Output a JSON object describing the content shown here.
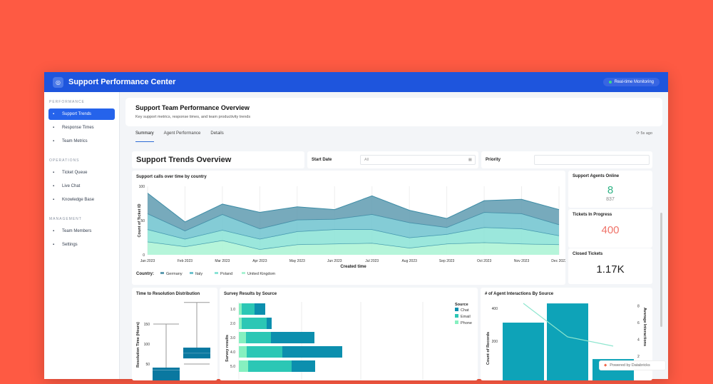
{
  "header": {
    "title": "Support Performance Center",
    "monitoring": "Real-time Monitoring"
  },
  "sidebar": {
    "sections": [
      {
        "label": "PERFORMANCE",
        "items": [
          {
            "label": "Support Trends",
            "icon": "bar-chart-icon",
            "active": true
          },
          {
            "label": "Response Times",
            "icon": "clock-icon"
          },
          {
            "label": "Team Metrics",
            "icon": "chart-icon"
          }
        ]
      },
      {
        "label": "OPERATIONS",
        "items": [
          {
            "label": "Ticket Queue",
            "icon": "ticket-icon"
          },
          {
            "label": "Live Chat",
            "icon": "chat-icon"
          },
          {
            "label": "Knowledge Base",
            "icon": "book-icon"
          }
        ]
      },
      {
        "label": "MANAGEMENT",
        "items": [
          {
            "label": "Team Members",
            "icon": "people-icon"
          },
          {
            "label": "Settings",
            "icon": "gear-icon"
          }
        ]
      }
    ]
  },
  "overview": {
    "title": "Support Team Performance Overview",
    "subtitle": "Key support metrics, response times, and team productivity trends"
  },
  "tabs": [
    "Summary",
    "Agent Performance",
    "Details"
  ],
  "refresh": "5s ago",
  "dashboard": {
    "title": "Support Trends Overview",
    "start_date_label": "Start Date",
    "start_date_value": "All",
    "priority_label": "Priority",
    "priority_value": ""
  },
  "kpis": [
    {
      "label": "Support Agents Online",
      "value": "8",
      "sub": "837",
      "color": "#2fb385"
    },
    {
      "label": "Tickets In Progress",
      "value": "400",
      "color": "#f0746a"
    },
    {
      "label": "Closed Tickets",
      "value": "1.17K",
      "color": "#222222"
    }
  ],
  "powered": "Powered by Databricks",
  "chart_data": [
    {
      "type": "area",
      "title": "Support calls over time by country",
      "xlabel": "Created time",
      "ylabel": "Count of Ticket ID",
      "ylim": [
        0,
        100
      ],
      "yticks": [
        0,
        50,
        100
      ],
      "stacked": true,
      "legend_title": "Country:",
      "legend": "bottom-left",
      "categories": [
        "Jan 2023",
        "Feb 2023",
        "Mar 2023",
        "Apr 2023",
        "May 2023",
        "Jun 2023",
        "Jul 2023",
        "Aug 2023",
        "Sep 2023",
        "Oct 2023",
        "Nov 2023",
        "Dec 2023"
      ],
      "series": [
        {
          "name": "United Kingdom",
          "color": "#a9f3d3",
          "values": [
            19,
            12,
            21,
            8,
            15,
            16,
            17,
            10,
            16,
            18,
            16,
            15
          ]
        },
        {
          "name": "Poland",
          "color": "#8ae3d6",
          "values": [
            18,
            11,
            15,
            15,
            19,
            21,
            20,
            15,
            14,
            22,
            22,
            13
          ]
        },
        {
          "name": "Italy",
          "color": "#6fc3cf",
          "values": [
            23,
            12,
            23,
            15,
            17,
            15,
            22,
            22,
            10,
            22,
            22,
            16
          ]
        },
        {
          "name": "Germany",
          "color": "#5f9bb0",
          "values": [
            30,
            13,
            15,
            24,
            19,
            14,
            27,
            18,
            13,
            17,
            21,
            22
          ]
        }
      ]
    },
    {
      "type": "box",
      "title": "Time to Resolution Distribution",
      "ylabel": "Resolution Time (Hours)",
      "yticks": [
        50,
        100,
        150
      ],
      "boxes": [
        {
          "min": 0,
          "q1": 0,
          "median": 35,
          "q3": 41,
          "max": 150
        },
        {
          "min": 50,
          "q1": 64,
          "median": 77,
          "q3": 91,
          "max": 204
        }
      ]
    },
    {
      "type": "bar",
      "orientation": "horizontal",
      "stacked": true,
      "title": "Survey Results by Source",
      "ylabel": "Survey results",
      "legend_title": "Source",
      "legend": "top-right",
      "categories": [
        "1.0",
        "2.0",
        "3.0",
        "4.0",
        "5.0"
      ],
      "series": [
        {
          "name": "Phone",
          "color": "#86f0c0",
          "values": [
            4,
            4,
            10,
            11,
            13
          ]
        },
        {
          "name": "Email",
          "color": "#2cc7b5",
          "values": [
            18,
            35,
            35,
            50,
            61
          ]
        },
        {
          "name": "Chat",
          "color": "#0c8fae",
          "values": [
            15,
            7,
            61,
            84,
            33
          ]
        }
      ]
    },
    {
      "type": "bar+line",
      "title": "# of Agent Interactions By Source",
      "ylabel": "Count of Records",
      "y2label": "Average Interactions",
      "yticks": [
        200,
        400
      ],
      "y2ticks": [
        2,
        4,
        6,
        8
      ],
      "bars": {
        "color": "#0ea3b8",
        "values": [
          313,
          430,
          91
        ]
      },
      "line": {
        "color": "#8ee6cf",
        "values": [
          8.3,
          4.3,
          3.2
        ]
      }
    }
  ]
}
